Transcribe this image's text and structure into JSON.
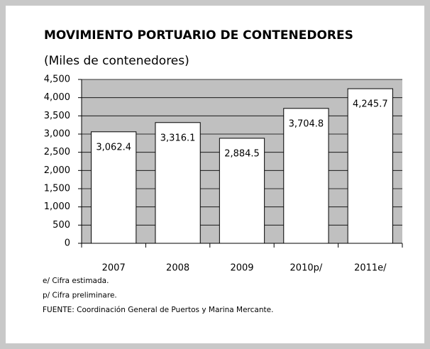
{
  "chart_data": {
    "type": "bar",
    "title": "MOVIMIENTO PORTUARIO DE CONTENEDORES",
    "subtitle": "(Miles de contenedores)",
    "categories": [
      "2007",
      "2008",
      "2009",
      "2010p/",
      "2011e/"
    ],
    "values": [
      3062.4,
      3316.1,
      2884.5,
      3704.8,
      4245.7
    ],
    "value_labels": [
      "3,062.4",
      "3,316.1",
      "2,884.5",
      "3,704.8",
      "4,245.7"
    ],
    "color": "#ffffff",
    "ylim": [
      0,
      4500
    ],
    "yticks": [
      0,
      500,
      {
        "value": 1000,
        "label": "1,000"
      },
      {
        "value": 1500,
        "label": "1,500"
      },
      {
        "value": 2000,
        "label": "2,000"
      },
      {
        "value": 2500,
        "label": "2,500"
      },
      {
        "value": 3000,
        "label": "3,000"
      },
      {
        "value": 3500,
        "label": "3,500"
      },
      {
        "value": 4000,
        "label": "4,000"
      },
      {
        "value": 4500,
        "label": "4,500"
      }
    ],
    "grid": true,
    "notes": [
      "e/ Cifra estimada.",
      "p/ Cifra preliminare.",
      "FUENTE: Coordinación General de Puertos y Marina Mercante."
    ]
  }
}
